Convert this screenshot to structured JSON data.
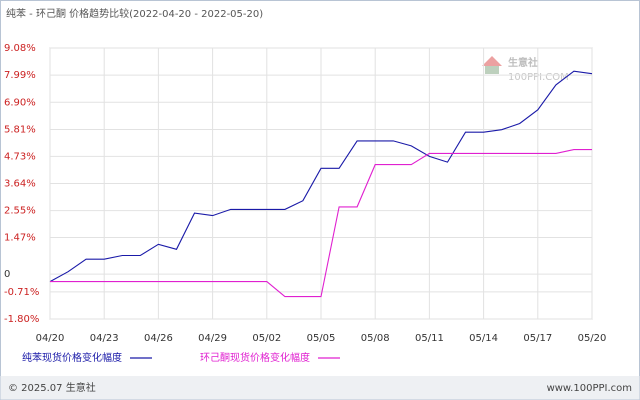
{
  "chart_data": {
    "type": "line",
    "title": "纯苯 - 环己酮 价格趋势比较(2022-04-20 - 2022-05-20)",
    "watermark": "生意社",
    "watermark_sub": "100PPI.COM",
    "copyright": "© 2025.07 生意社",
    "footer_url": "www.100PPI.com",
    "categories": [
      "04/20",
      null,
      null,
      "04/23",
      null,
      null,
      "04/26",
      null,
      null,
      "04/29",
      null,
      null,
      "05/02",
      null,
      null,
      "05/05",
      null,
      null,
      "05/08",
      null,
      null,
      "05/11",
      null,
      null,
      "05/14",
      null,
      null,
      "05/17",
      null,
      null,
      "05/20"
    ],
    "series": [
      {
        "name": "纯苯现货价格变化幅度",
        "color": "#1a1aa8",
        "values": [
          -0.3,
          0.1,
          0.6,
          0.6,
          0.75,
          0.75,
          1.2,
          1.0,
          2.45,
          2.35,
          2.6,
          2.6,
          2.6,
          2.6,
          2.95,
          4.25,
          4.25,
          5.35,
          5.35,
          5.35,
          5.15,
          4.73,
          4.5,
          5.7,
          5.7,
          5.8,
          6.05,
          6.6,
          7.6,
          8.15,
          8.05
        ]
      },
      {
        "name": "环己酮现货价格变化幅度",
        "color": "#e020d0",
        "values": [
          -0.3,
          -0.3,
          -0.3,
          -0.3,
          -0.3,
          -0.3,
          -0.3,
          -0.3,
          -0.3,
          -0.3,
          -0.3,
          -0.3,
          -0.3,
          -0.9,
          -0.9,
          -0.9,
          2.7,
          2.7,
          4.4,
          4.4,
          4.4,
          4.85,
          4.85,
          4.85,
          4.85,
          4.85,
          4.85,
          4.85,
          4.85,
          5.0,
          5.0
        ]
      }
    ],
    "ylim": [
      -1.8,
      9.08
    ],
    "yticks": [
      {
        "value": 9.08,
        "label": "9.08%"
      },
      {
        "value": 7.99,
        "label": "7.99%"
      },
      {
        "value": 6.9,
        "label": "6.90%"
      },
      {
        "value": 5.81,
        "label": "5.81%"
      },
      {
        "value": 4.73,
        "label": "4.73%"
      },
      {
        "value": 3.64,
        "label": "3.64%"
      },
      {
        "value": 2.55,
        "label": "2.55%"
      },
      {
        "value": 1.47,
        "label": "1.47%"
      },
      0,
      {
        "value": -0.71,
        "label": "-0.71%"
      },
      {
        "value": -1.8,
        "label": "-1.80%"
      }
    ],
    "grid": true
  }
}
